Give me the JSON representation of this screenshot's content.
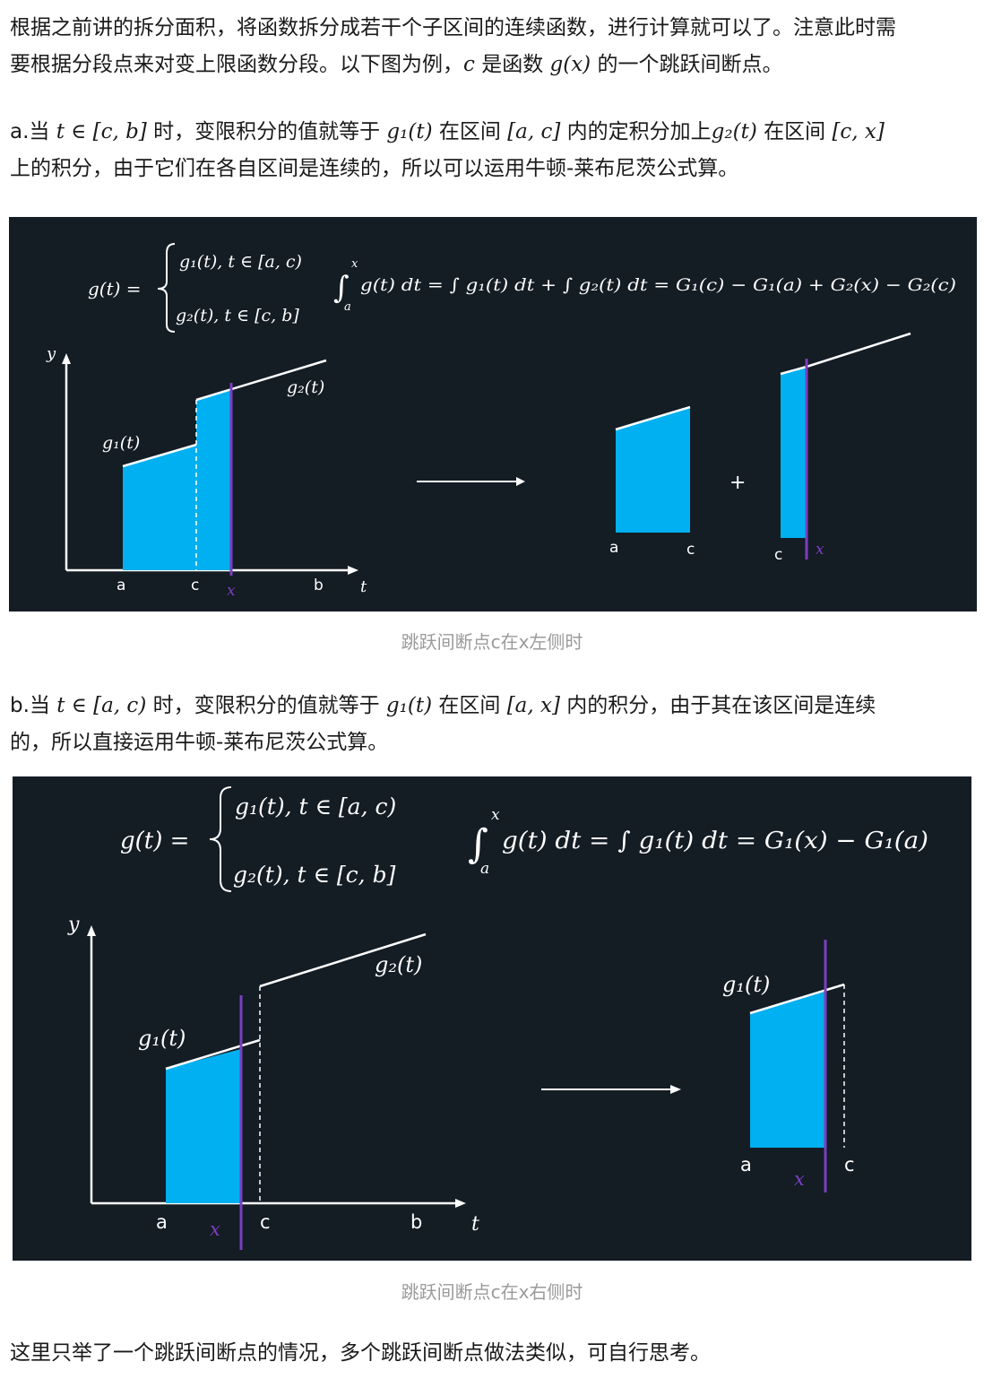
{
  "intro": {
    "line1": "根据之前讲的拆分面积，将函数拆分成若干个子区间的连续函数，进行计算就可以了。注意此时需",
    "line2_a": "要根据分段点来对变上限函数分段。以下图为例，",
    "line2_c": "c",
    "line2_b": " 是函数 ",
    "line2_func": "g(x)",
    "line2_d": " 的一个跳跃间断点。"
  },
  "case_a": {
    "prefix": "a.当 ",
    "cond": "t ∈ [c, b]",
    "t1": " 时，变限积分的值就等于 ",
    "g1": "g₁(t)",
    "t2": " 在区间 ",
    "int1": "[a, c]",
    "t3": " 内的定积分加上",
    "g2": "g₂(t)",
    "t4": " 在区间 ",
    "int2": "[c, x]",
    "line2": "上的积分，由于它们在各自区间是连续的，所以可以运用牛顿-莱布尼茨公式算。"
  },
  "figure_a": {
    "def_lhs": "g(t) =",
    "piece1": "g₁(t), t ∈ [a, c)",
    "piece2": "g₂(t), t ∈ [c, b]",
    "formula": "g(t) dt = ∫ g₁(t) dt + ∫ g₂(t) dt = G₁(c) − G₁(a) + G₂(x) − G₂(c)",
    "y_label": "y",
    "t_label": "t",
    "g1_label": "g₁(t)",
    "g2_label": "g₂(t)",
    "a": "a",
    "c": "c",
    "x": "x",
    "b": "b",
    "plus": "+"
  },
  "caption_a": "跳跃间断点c在x左侧时",
  "case_b": {
    "prefix": "b.当 ",
    "cond": "t ∈ [a, c)",
    "t1": " 时，变限积分的值就等于 ",
    "g1": "g₁(t)",
    "t2": " 在区间 ",
    "int1": "[a, x]",
    "t3": " 内的积分，由于其在该区间是连续",
    "line2": "的，所以直接运用牛顿-莱布尼茨公式算。"
  },
  "figure_b": {
    "def_lhs": "g(t) =",
    "piece1": "g₁(t), t ∈ [a, c)",
    "piece2": "g₂(t), t ∈ [c, b]",
    "formula": "g(t) dt = ∫ g₁(t) dt = G₁(x) − G₁(a)",
    "y_label": "y",
    "t_label": "t",
    "g1_label": "g₁(t)",
    "g2_label": "g₂(t)",
    "a": "a",
    "c": "c",
    "x": "x",
    "b": "b"
  },
  "caption_b": "跳跃间断点c在x右侧时",
  "outro": "这里只举了一个跳跃间断点的情况，多个跳跃间断点做法类似，可自行思考。",
  "colors": {
    "figure_bg": "#141c24",
    "area": "#00b0f0",
    "x_line": "#7a3fc0",
    "curve": "#ffffff"
  }
}
